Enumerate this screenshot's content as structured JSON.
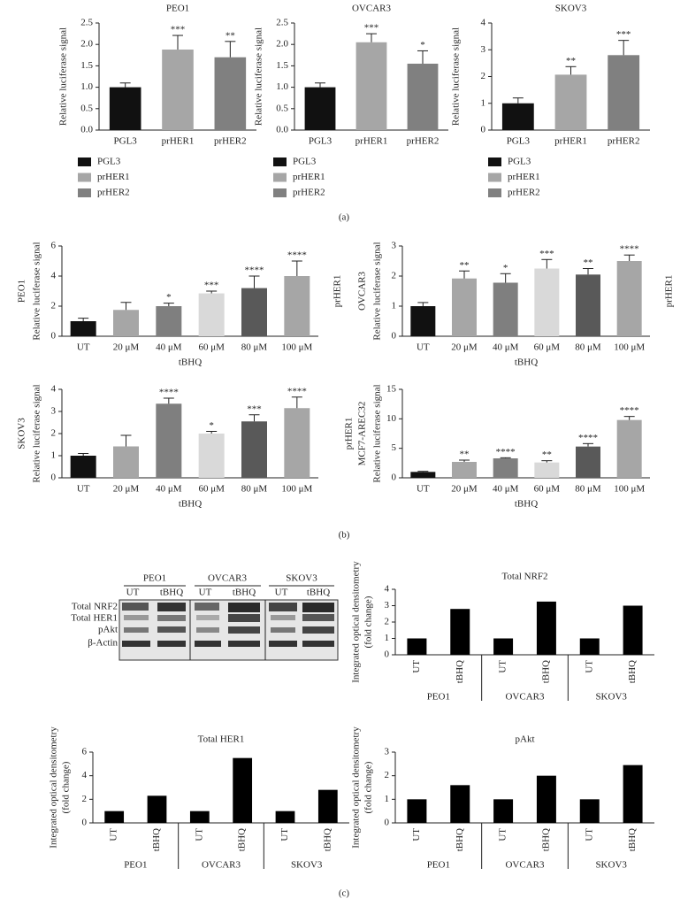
{
  "panels": [
    "(a)",
    "(b)",
    "(c)"
  ],
  "blot": {
    "groups": [
      "PEO1",
      "OVCAR3",
      "SKOV3"
    ],
    "lanes": [
      "UT",
      "tBHQ",
      "UT",
      "tBHQ",
      "UT",
      "tBHQ"
    ],
    "rows": [
      "Total NRF2",
      "Total HER1",
      "pAkt",
      "β-Actin"
    ]
  },
  "chart_data": [
    {
      "type": "bar",
      "title": "PEO1",
      "ylabel": "Relative luciferase signal",
      "categories": [
        "PGL3",
        "prHER1",
        "prHER2"
      ],
      "values": [
        1.0,
        1.88,
        1.7
      ],
      "errors": [
        0.1,
        0.33,
        0.37
      ],
      "annotations": [
        null,
        "***",
        "**"
      ],
      "colors": [
        "#111111",
        "#a6a6a6",
        "#808080"
      ],
      "legend": true,
      "ylim": [
        0,
        2.5
      ],
      "yticks": [
        {
          "value": 0,
          "label": "0.0"
        },
        0.5,
        {
          "value": 1,
          "label": "1.0"
        },
        1.5,
        {
          "value": 2,
          "label": "2.0"
        },
        2.5
      ]
    },
    {
      "type": "bar",
      "title": "OVCAR3",
      "ylabel": "Relative luciferase signal",
      "categories": [
        "PGL3",
        "prHER1",
        "prHER2"
      ],
      "values": [
        1.0,
        2.05,
        1.55
      ],
      "errors": [
        0.1,
        0.2,
        0.3
      ],
      "annotations": [
        null,
        "***",
        "*"
      ],
      "colors": [
        "#111111",
        "#a6a6a6",
        "#808080"
      ],
      "legend": true,
      "ylim": [
        0,
        2.5
      ],
      "yticks": [
        {
          "value": 0,
          "label": "0.0"
        },
        0.5,
        {
          "value": 1,
          "label": "1.0"
        },
        1.5,
        {
          "value": 2,
          "label": "2.0"
        },
        2.5
      ]
    },
    {
      "type": "bar",
      "title": "SKOV3",
      "ylabel": "Relative luciferase signal",
      "categories": [
        "PGL3",
        "prHER1",
        "prHER2"
      ],
      "values": [
        1.0,
        2.07,
        2.8
      ],
      "errors": [
        0.2,
        0.3,
        0.55
      ],
      "annotations": [
        null,
        "**",
        "***"
      ],
      "colors": [
        "#111111",
        "#a6a6a6",
        "#808080"
      ],
      "legend": true,
      "ylim": [
        0,
        4
      ],
      "yticks": [
        0,
        1,
        2,
        3,
        4
      ]
    },
    {
      "type": "bar",
      "side_label": "PEO1",
      "right_label": "prHER1",
      "ylabel": "Relative luciferase signal",
      "xlabel": "tBHQ",
      "categories": [
        "UT",
        "20 μM",
        "40 μM",
        "60 μM",
        "80 μM",
        "100 μM"
      ],
      "values": [
        1.0,
        1.75,
        2.0,
        2.85,
        3.2,
        4.0
      ],
      "errors": [
        0.2,
        0.5,
        0.2,
        0.15,
        0.8,
        1.0
      ],
      "annotations": [
        null,
        null,
        "*",
        "***",
        "****",
        "****"
      ],
      "colors": [
        "#111111",
        "#a6a6a6",
        "#7f7f7f",
        "#d9d9d9",
        "#595959",
        "#a6a6a6"
      ],
      "ylim": [
        0,
        6
      ],
      "yticks": [
        0,
        2,
        4,
        6
      ]
    },
    {
      "type": "bar",
      "side_label": "OVCAR3",
      "right_label": "prHER1",
      "ylabel": "Relative luciferase signal",
      "xlabel": "tBHQ",
      "categories": [
        "UT",
        "20 μM",
        "40 μM",
        "60 μM",
        "80 μM",
        "100 μM"
      ],
      "values": [
        1.0,
        1.92,
        1.78,
        2.25,
        2.05,
        2.5
      ],
      "errors": [
        0.12,
        0.25,
        0.3,
        0.3,
        0.2,
        0.2
      ],
      "annotations": [
        null,
        "**",
        "*",
        "***",
        "**",
        "****"
      ],
      "colors": [
        "#111111",
        "#a6a6a6",
        "#7f7f7f",
        "#d9d9d9",
        "#595959",
        "#a6a6a6"
      ],
      "ylim": [
        0,
        3
      ],
      "yticks": [
        0,
        1,
        2,
        3
      ]
    },
    {
      "type": "bar",
      "side_label": "SKOV3",
      "ylabel": "Relative luciferase signal",
      "xlabel": "tBHQ",
      "categories": [
        "UT",
        "20 μM",
        "40 μM",
        "60 μM",
        "80 μM",
        "100 μM"
      ],
      "values": [
        1.0,
        1.42,
        3.35,
        2.0,
        2.55,
        3.15
      ],
      "errors": [
        0.1,
        0.5,
        0.25,
        0.1,
        0.3,
        0.5
      ],
      "annotations": [
        null,
        null,
        "****",
        "*",
        "***",
        "****"
      ],
      "colors": [
        "#111111",
        "#a6a6a6",
        "#7f7f7f",
        "#d9d9d9",
        "#595959",
        "#a6a6a6"
      ],
      "ylim": [
        0,
        4
      ],
      "yticks": [
        0,
        1,
        2,
        3,
        4
      ]
    },
    {
      "type": "bar",
      "outer_label": "prHER1",
      "side_label": "MCF7-AREC32",
      "ylabel": "Relative luciferase signal",
      "xlabel": "tBHQ",
      "categories": [
        "UT",
        "20 μM",
        "40 μM",
        "60 μM",
        "80 μM",
        "100 μM"
      ],
      "values": [
        1.0,
        2.7,
        3.3,
        2.6,
        5.3,
        9.8
      ],
      "errors": [
        0.1,
        0.3,
        0.1,
        0.3,
        0.5,
        0.6
      ],
      "annotations": [
        null,
        "**",
        "****",
        "**",
        "****",
        "****"
      ],
      "colors": [
        "#111111",
        "#a6a6a6",
        "#7f7f7f",
        "#d9d9d9",
        "#595959",
        "#a6a6a6"
      ],
      "ylim": [
        0,
        15
      ],
      "yticks": [
        0,
        5,
        10,
        15
      ]
    },
    {
      "type": "bar",
      "title": "Total NRF2",
      "ylabel": [
        "Integrated optical densitometry",
        "(fold change)"
      ],
      "categories": [
        "UT",
        "tBHQ",
        "UT",
        "tBHQ",
        "UT",
        "tBHQ"
      ],
      "groups": [
        "PEO1",
        "OVCAR3",
        "SKOV3"
      ],
      "values": [
        1.0,
        2.8,
        1.0,
        3.25,
        1.0,
        3.0
      ],
      "color": "#000000",
      "ylim": [
        0,
        4
      ],
      "yticks": [
        0,
        1,
        2,
        3,
        4
      ]
    },
    {
      "type": "bar",
      "title": "Total HER1",
      "ylabel": [
        "Integrated optical densitometry",
        "(fold change)"
      ],
      "categories": [
        "UT",
        "tBHQ",
        "UT",
        "tBHQ",
        "UT",
        "tBHQ"
      ],
      "groups": [
        "PEO1",
        "OVCAR3",
        "SKOV3"
      ],
      "values": [
        1.0,
        2.3,
        1.0,
        5.5,
        1.0,
        2.8
      ],
      "color": "#000000",
      "ylim": [
        0,
        6
      ],
      "yticks": [
        0,
        2,
        4,
        6
      ]
    },
    {
      "type": "bar",
      "title": "pAkt",
      "ylabel": [
        "Integrated optical densitometry",
        "(fold change)"
      ],
      "categories": [
        "UT",
        "tBHQ",
        "UT",
        "tBHQ",
        "UT",
        "tBHQ"
      ],
      "groups": [
        "PEO1",
        "OVCAR3",
        "SKOV3"
      ],
      "values": [
        1.0,
        1.6,
        1.0,
        2.0,
        1.0,
        2.45
      ],
      "color": "#000000",
      "ylim": [
        0,
        3
      ],
      "yticks": [
        0,
        1,
        2,
        3
      ]
    }
  ]
}
